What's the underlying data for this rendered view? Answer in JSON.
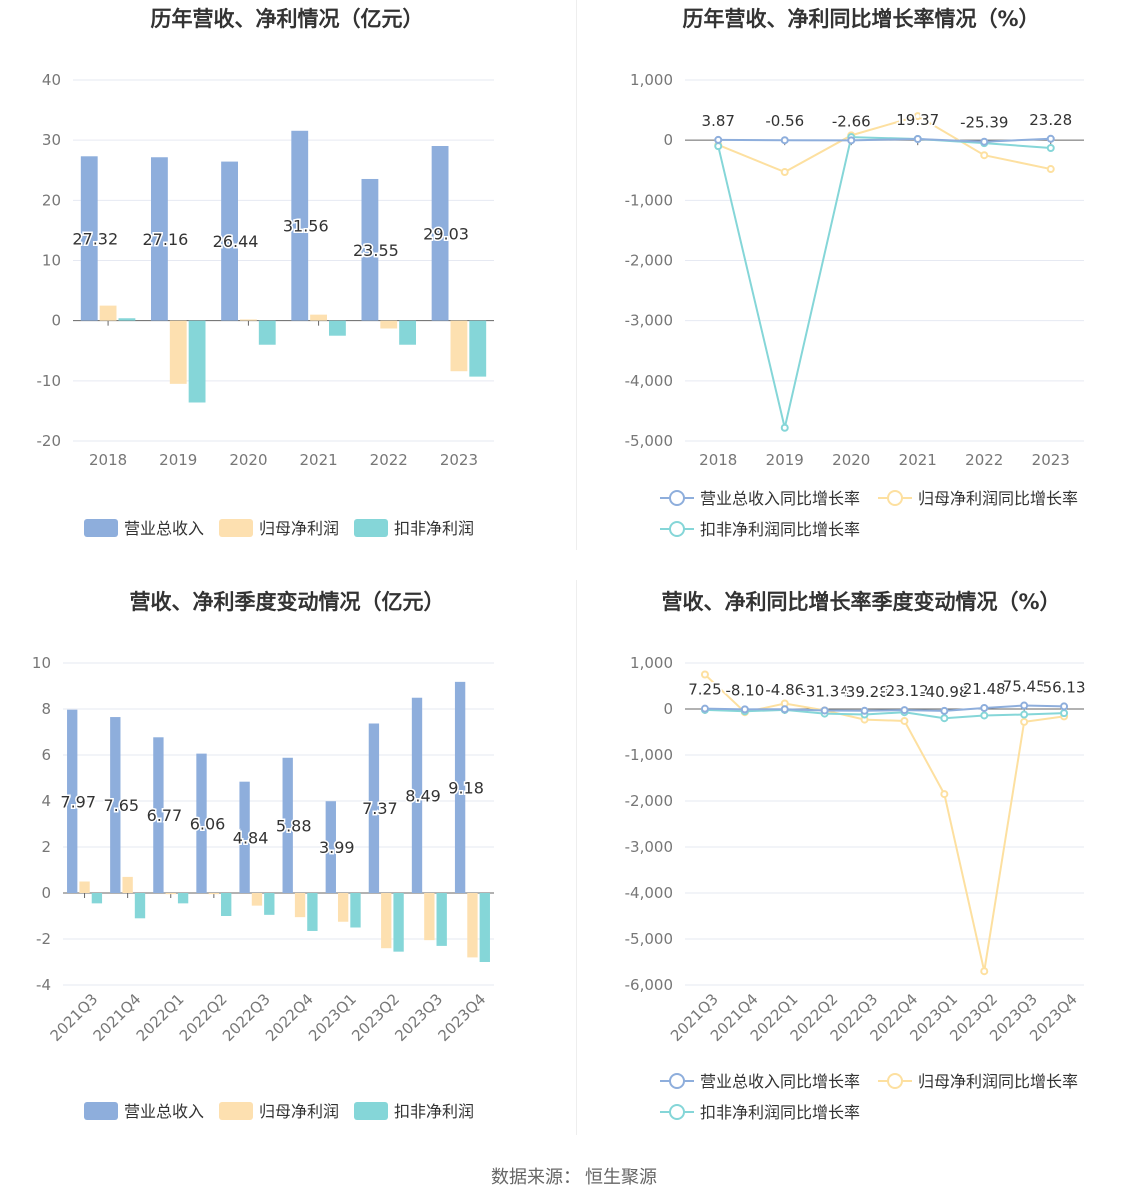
{
  "source": {
    "label": "数据来源：",
    "value": "恒生聚源"
  },
  "charts": [
    {
      "id": "annual_revenue_profit",
      "type": "bar",
      "title": "历年营收、净利情况（亿元）",
      "categories": [
        "2018",
        "2019",
        "2020",
        "2021",
        "2022",
        "2023"
      ],
      "ylim": [
        -20,
        40
      ],
      "yticks": [
        40,
        30,
        20,
        10,
        0,
        -10,
        -20
      ],
      "data_label_series": 0,
      "series": [
        {
          "name": "营业总收入",
          "color": "#8eaedc",
          "values": [
            27.32,
            27.16,
            26.44,
            31.56,
            23.55,
            29.03
          ]
        },
        {
          "name": "归母净利润",
          "color": "#fde0b0",
          "values": [
            2.5,
            -10.5,
            0.2,
            1.0,
            -1.3,
            -8.4
          ]
        },
        {
          "name": "扣非净利润",
          "color": "#85d6d8",
          "values": [
            0.4,
            -13.6,
            -4.0,
            -2.5,
            -4.0,
            -9.3
          ]
        }
      ],
      "data_labels": [
        "27.32",
        "27.16",
        "26.44",
        "31.56",
        "23.55",
        "29.03"
      ]
    },
    {
      "id": "annual_growth",
      "type": "line",
      "title": "历年营收、净利同比增长率情况（%）",
      "categories": [
        "2018",
        "2019",
        "2020",
        "2021",
        "2022",
        "2023"
      ],
      "ylim": [
        -5000,
        1000
      ],
      "yticks": [
        1000,
        0,
        -1000,
        -2000,
        -3000,
        -4000,
        -5000
      ],
      "ytick_labels": [
        "1,000",
        "0",
        "-1,000",
        "-2,000",
        "-3,000",
        "-4,000",
        "-5,000"
      ],
      "data_label_series": 0,
      "series": [
        {
          "name": "营业总收入同比增长率",
          "color": "#8eaedc",
          "values": [
            3.87,
            -0.56,
            -2.66,
            19.37,
            -25.39,
            23.28
          ]
        },
        {
          "name": "归母净利润同比增长率",
          "color": "#fde0a0",
          "values": [
            -80,
            -530,
            80,
            400,
            -250,
            -480
          ]
        },
        {
          "name": "扣非净利润同比增长率",
          "color": "#85d6d8",
          "values": [
            -100,
            -4780,
            50,
            20,
            -50,
            -130
          ]
        }
      ],
      "data_labels": [
        "3.87",
        "-0.56",
        "-2.66",
        "19.37",
        "-25.39",
        "23.28"
      ]
    },
    {
      "id": "quarterly_revenue_profit",
      "type": "bar",
      "title": "营收、净利季度变动情况（亿元）",
      "categories": [
        "2021Q3",
        "2021Q4",
        "2022Q1",
        "2022Q2",
        "2022Q3",
        "2022Q4",
        "2023Q1",
        "2023Q2",
        "2023Q3",
        "2023Q4"
      ],
      "ylim": [
        -4,
        10
      ],
      "yticks": [
        10,
        8,
        6,
        4,
        2,
        0,
        -2,
        -4
      ],
      "data_label_series": 0,
      "series": [
        {
          "name": "营业总收入",
          "color": "#8eaedc",
          "values": [
            7.97,
            7.65,
            6.77,
            6.06,
            4.84,
            5.88,
            3.99,
            7.37,
            8.49,
            9.18
          ]
        },
        {
          "name": "归母净利润",
          "color": "#fde0b0",
          "values": [
            0.5,
            0.7,
            -0.05,
            -0.05,
            -0.55,
            -1.05,
            -1.25,
            -2.4,
            -2.05,
            -2.8
          ]
        },
        {
          "name": "扣非净利润",
          "color": "#85d6d8",
          "values": [
            -0.45,
            -1.1,
            -0.45,
            -1.0,
            -0.95,
            -1.65,
            -1.5,
            -2.55,
            -2.3,
            -3.0
          ]
        }
      ],
      "data_labels": [
        "7.97",
        "7.65",
        "6.77",
        "6.06",
        "4.84",
        "5.88",
        "3.99",
        "7.37",
        "8.49",
        "9.18"
      ]
    },
    {
      "id": "quarterly_growth",
      "type": "line",
      "title": "营收、净利同比增长率季度变动情况（%）",
      "categories": [
        "2021Q3",
        "2021Q4",
        "2022Q1",
        "2022Q2",
        "2022Q3",
        "2022Q4",
        "2023Q1",
        "2023Q2",
        "2023Q3",
        "2023Q4"
      ],
      "ylim": [
        -6000,
        1000
      ],
      "yticks": [
        1000,
        0,
        -1000,
        -2000,
        -3000,
        -4000,
        -5000,
        -6000
      ],
      "ytick_labels": [
        "1,000",
        "0",
        "-1,000",
        "-2,000",
        "-3,000",
        "-4,000",
        "-5,000",
        "-6,000"
      ],
      "data_label_series": 0,
      "series": [
        {
          "name": "营业总收入同比增长率",
          "color": "#8eaedc",
          "values": [
            7.25,
            -8.1,
            -4.86,
            -31.34,
            -39.28,
            -23.12,
            -40.98,
            21.48,
            75.45,
            56.13
          ]
        },
        {
          "name": "归母净利润同比增长率",
          "color": "#fde0a0",
          "values": [
            750,
            -70,
            120,
            -30,
            -230,
            -260,
            -1850,
            -5700,
            -280,
            -160
          ]
        },
        {
          "name": "扣非净利润同比增长率",
          "color": "#85d6d8",
          "values": [
            -20,
            -50,
            -20,
            -100,
            -120,
            -70,
            -200,
            -140,
            -120,
            -90
          ]
        }
      ],
      "data_labels": [
        "7.25",
        "-8.10",
        "-4.86",
        "-31.34",
        "-39.28",
        "-23.12",
        "-40.98",
        "21.48",
        "75.45",
        "56.13"
      ]
    }
  ]
}
